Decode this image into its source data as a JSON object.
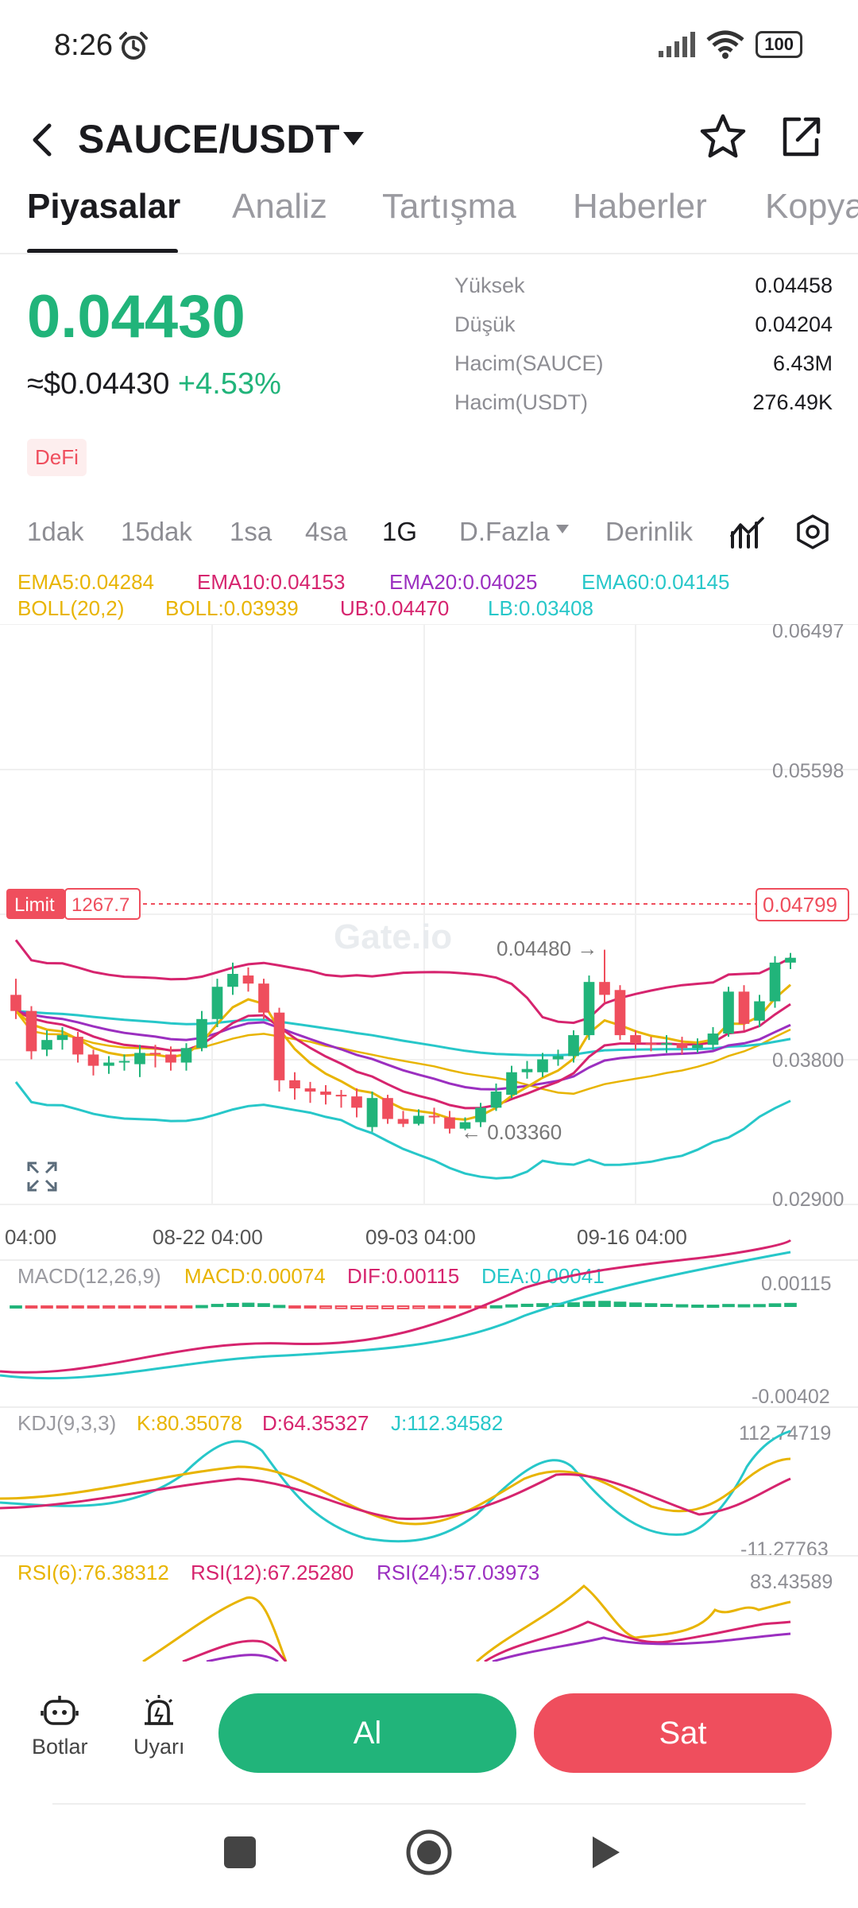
{
  "status_bar": {
    "time": "8:26",
    "battery": "100"
  },
  "header": {
    "pair": "SAUCE/USDT"
  },
  "tabs": [
    {
      "label": "Piyasalar"
    },
    {
      "label": "Analiz"
    },
    {
      "label": "Tartışma"
    },
    {
      "label": "Haberler"
    },
    {
      "label": "Kopya"
    }
  ],
  "ticker": {
    "last_price": "0.04430",
    "usd_price": "≈$0.04430",
    "change": "+4.53%",
    "tag": "DeFi",
    "stats": [
      {
        "label": "Yüksek",
        "value": "0.04458"
      },
      {
        "label": "Düşük",
        "value": "0.04204"
      },
      {
        "label": "Hacim(SAUCE)",
        "value": "6.43M"
      },
      {
        "label": "Hacim(USDT)",
        "value": "276.49K"
      }
    ]
  },
  "timeframes": [
    "1dak",
    "15dak",
    "1sa",
    "4sa",
    "1G",
    "D.Fazla",
    "Derinlik"
  ],
  "indicators": {
    "ema5": "EMA5:0.04284",
    "ema10": "EMA10:0.04153",
    "ema20": "EMA20:0.04025",
    "ema60": "EMA60:0.04145",
    "boll_name": "BOLL(20,2)",
    "boll": "BOLL:0.03939",
    "ub": "UB:0.04470",
    "lb": "LB:0.03408"
  },
  "chart_data": {
    "type": "candlestick",
    "watermark": "Gate.io",
    "price_axis": [
      "0.06497",
      "0.05598",
      "0.04799",
      "0.03800",
      "0.02900"
    ],
    "time_axis": [
      "04:00",
      "08-22 04:00",
      "09-03 04:00",
      "09-16 04:00"
    ],
    "limit_label": "Limit",
    "limit_value": "1267.7",
    "limit_price": "0.04799",
    "high_marker": "0.04480",
    "low_marker": "0.03360",
    "ylim": [
      0.029,
      0.065
    ],
    "colors": {
      "up": "#21b47a",
      "down": "#ef4e5d",
      "ema5": "#e8b400",
      "ema10": "#d6246e",
      "ema20": "#9b2fc0",
      "ema60": "#27c7c9",
      "boll": "#e8b400",
      "ub": "#d6246e",
      "lb": "#27c7c9"
    },
    "candles": [
      [
        0.042,
        0.041,
        0.043,
        0.0405
      ],
      [
        0.041,
        0.0385,
        0.0413,
        0.038
      ],
      [
        0.0386,
        0.0392,
        0.0398,
        0.0382
      ],
      [
        0.0392,
        0.0395,
        0.04,
        0.0386
      ],
      [
        0.0394,
        0.0383,
        0.0397,
        0.0378
      ],
      [
        0.0383,
        0.0376,
        0.0386,
        0.037
      ],
      [
        0.0376,
        0.0378,
        0.0382,
        0.0371
      ],
      [
        0.0378,
        0.0379,
        0.0383,
        0.0373
      ],
      [
        0.0377,
        0.0384,
        0.0389,
        0.0369
      ],
      [
        0.0384,
        0.0383,
        0.0389,
        0.0375
      ],
      [
        0.0383,
        0.0378,
        0.0388,
        0.0373
      ],
      [
        0.0378,
        0.0387,
        0.039,
        0.0373
      ],
      [
        0.0387,
        0.0405,
        0.041,
        0.0385
      ],
      [
        0.0405,
        0.0425,
        0.043,
        0.04
      ],
      [
        0.0425,
        0.0433,
        0.044,
        0.042
      ],
      [
        0.0432,
        0.0427,
        0.0437,
        0.0422
      ],
      [
        0.0427,
        0.0409,
        0.043,
        0.0405
      ],
      [
        0.0409,
        0.0367,
        0.0412,
        0.036
      ],
      [
        0.0367,
        0.0362,
        0.0372,
        0.0355
      ],
      [
        0.0362,
        0.036,
        0.0366,
        0.0353
      ],
      [
        0.036,
        0.0358,
        0.0364,
        0.0352
      ],
      [
        0.0358,
        0.0357,
        0.0361,
        0.035
      ],
      [
        0.0357,
        0.035,
        0.0362,
        0.0344
      ],
      [
        0.0338,
        0.0356,
        0.036,
        0.0335
      ],
      [
        0.0356,
        0.0343,
        0.0358,
        0.034
      ],
      [
        0.0343,
        0.034,
        0.0348,
        0.0338
      ],
      [
        0.034,
        0.0345,
        0.0349,
        0.0339
      ],
      [
        0.0345,
        0.0344,
        0.035,
        0.034
      ],
      [
        0.0344,
        0.0337,
        0.0348,
        0.0334
      ],
      [
        0.0337,
        0.0341,
        0.0344,
        0.0336
      ],
      [
        0.0341,
        0.035,
        0.0353,
        0.0338
      ],
      [
        0.035,
        0.036,
        0.0365,
        0.0348
      ],
      [
        0.0358,
        0.0372,
        0.0376,
        0.0356
      ],
      [
        0.0372,
        0.0374,
        0.0379,
        0.0368
      ],
      [
        0.0372,
        0.038,
        0.0384,
        0.0369
      ],
      [
        0.038,
        0.0382,
        0.0386,
        0.0376
      ],
      [
        0.0382,
        0.0395,
        0.0398,
        0.0378
      ],
      [
        0.0395,
        0.0428,
        0.0432,
        0.0392
      ],
      [
        0.0428,
        0.042,
        0.0448,
        0.0415
      ],
      [
        0.0423,
        0.0395,
        0.0426,
        0.0392
      ],
      [
        0.0395,
        0.039,
        0.0398,
        0.0386
      ],
      [
        0.039,
        0.0389,
        0.0394,
        0.0385
      ],
      [
        0.0389,
        0.039,
        0.0395,
        0.0384
      ],
      [
        0.039,
        0.0387,
        0.0394,
        0.0383
      ],
      [
        0.0387,
        0.0389,
        0.0393,
        0.0384
      ],
      [
        0.0389,
        0.0396,
        0.04,
        0.0386
      ],
      [
        0.0396,
        0.0422,
        0.0425,
        0.0394
      ],
      [
        0.0422,
        0.0402,
        0.0426,
        0.0398
      ],
      [
        0.0404,
        0.0416,
        0.042,
        0.04
      ],
      [
        0.0416,
        0.044,
        0.0444,
        0.0412
      ],
      [
        0.044,
        0.0443,
        0.0446,
        0.0436
      ]
    ]
  },
  "macd": {
    "label": "MACD(12,26,9)",
    "macd": "MACD:0.00074",
    "dif": "DIF:0.00115",
    "dea": "DEA:0.00041",
    "top": "0.00115",
    "bottom": "-0.00402"
  },
  "kdj": {
    "label": "KDJ(9,3,3)",
    "k": "K:80.35078",
    "d": "D:64.35327",
    "j": "J:112.34582",
    "top": "112.74719",
    "bottom": "-11.27763"
  },
  "rsi": {
    "rsi6": "RSI(6):76.38312",
    "rsi12": "RSI(12):67.25280",
    "rsi24": "RSI(24):57.03973",
    "top": "83.43589"
  },
  "bottom_bar": {
    "bots": "Botlar",
    "alerts": "Uyarı",
    "buy": "Al",
    "sell": "Sat"
  }
}
